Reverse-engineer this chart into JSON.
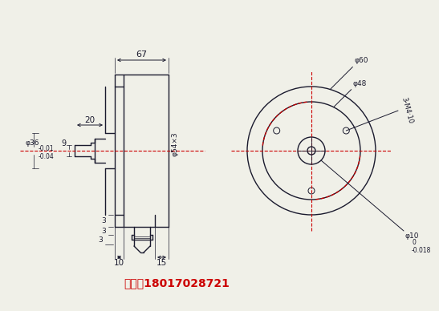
{
  "bg_color": "#f0f0e8",
  "line_color": "#1a1a2e",
  "red_color": "#cc0000",
  "phone_text": "手机：18017028721",
  "phone_color": "#cc0000",
  "phone_fontsize": 10,
  "dim_67": "67",
  "dim_20": "20",
  "dim_9": "9",
  "dim_10": "10",
  "dim_15": "15",
  "dim_phi54": "φ54×3",
  "dim_phi36": "φ36",
  "dim_phi36_tol": "-0.01\n-0.04",
  "dim_phi60": "φ60",
  "dim_phi48": "φ48",
  "dim_phi10": "φ10",
  "dim_phi10_tol": "0\n-0.018",
  "dim_3MA4": "3-M4·10",
  "dim_3a": "3",
  "dim_3b": "3",
  "dim_3c": "3"
}
